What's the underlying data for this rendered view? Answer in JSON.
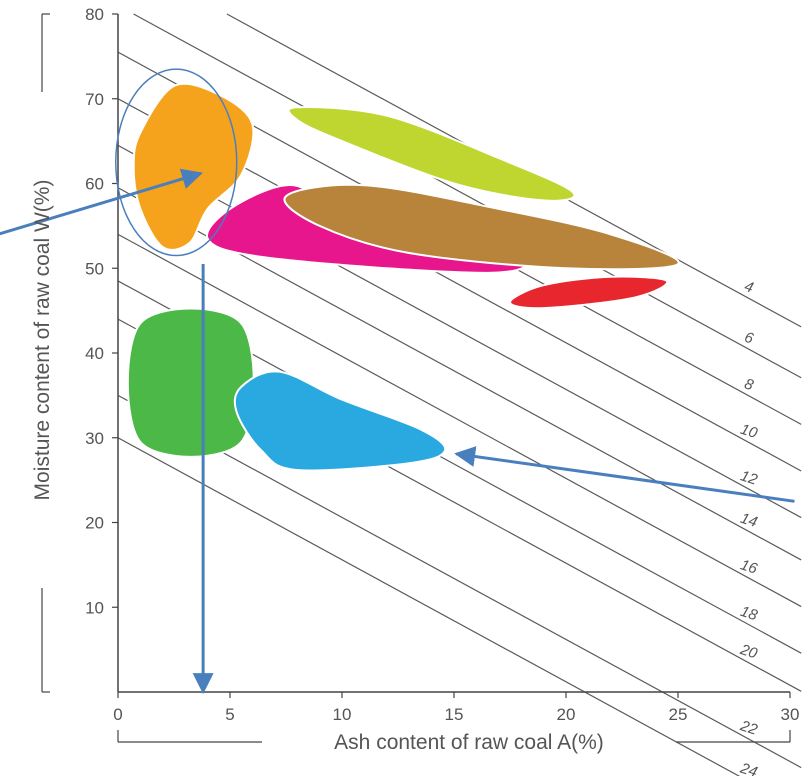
{
  "chart_data": {
    "type": "area",
    "xlabel": "Ash content of raw coal A(%)",
    "ylabel": "Moisture content of raw coal W(%)",
    "xlim": [
      0,
      30
    ],
    "ylim": [
      0,
      80
    ],
    "x_ticks": [
      "0",
      "5",
      "10",
      "15",
      "20",
      "25",
      "30"
    ],
    "y_ticks": [
      "10",
      "20",
      "30",
      "40",
      "50",
      "60",
      "70",
      "80"
    ],
    "isolines": [
      {
        "label": "4",
        "w_at_a0": 87.0
      },
      {
        "label": "6",
        "w_at_a0": 81.0
      },
      {
        "label": "8",
        "w_at_a0": 75.5
      },
      {
        "label": "10",
        "w_at_a0": 70.0
      },
      {
        "label": "12",
        "w_at_a0": 64.5
      },
      {
        "label": "14",
        "w_at_a0": 59.5
      },
      {
        "label": "16",
        "w_at_a0": 54.0
      },
      {
        "label": "18",
        "w_at_a0": 48.5
      },
      {
        "label": "20",
        "w_at_a0": 44.0
      },
      {
        "label": "22",
        "w_at_a0": 35.0
      },
      {
        "label": "24",
        "w_at_a0": 30.0
      }
    ],
    "regions": [
      {
        "color": "#f5a31d",
        "points": [
          [
            1,
            66
          ],
          [
            2.5,
            71.5
          ],
          [
            4.5,
            70.5
          ],
          [
            6,
            67
          ],
          [
            5.5,
            61
          ],
          [
            4,
            57
          ],
          [
            3.2,
            53
          ],
          [
            2,
            52.5
          ],
          [
            1,
            57
          ],
          [
            0.7,
            62
          ]
        ]
      },
      {
        "color": "#bfd630",
        "points": [
          [
            8,
            69
          ],
          [
            12,
            68
          ],
          [
            17,
            63
          ],
          [
            20.3,
            59
          ],
          [
            19,
            58
          ],
          [
            15,
            60
          ],
          [
            10,
            65
          ],
          [
            8,
            67.5
          ]
        ]
      },
      {
        "color": "#e8168c",
        "points": [
          [
            4,
            53.5
          ],
          [
            5,
            57
          ],
          [
            7.5,
            59.8
          ],
          [
            9.5,
            58
          ],
          [
            14,
            54
          ],
          [
            18,
            51
          ],
          [
            17,
            49.5
          ],
          [
            12,
            50
          ],
          [
            6,
            51.5
          ]
        ]
      },
      {
        "color": "#b8843c",
        "points": [
          [
            7.5,
            58.5
          ],
          [
            11,
            59.8
          ],
          [
            17,
            57
          ],
          [
            22,
            54
          ],
          [
            25,
            50.5
          ],
          [
            20,
            50
          ],
          [
            13,
            51.8
          ],
          [
            9,
            55
          ]
        ]
      },
      {
        "color": "#e8262d",
        "points": [
          [
            17.5,
            46
          ],
          [
            19,
            48
          ],
          [
            22,
            49
          ],
          [
            24.5,
            48.5
          ],
          [
            23,
            46.5
          ],
          [
            19,
            45.3
          ]
        ]
      },
      {
        "color": "#4bb848",
        "points": [
          [
            1,
            29.5
          ],
          [
            1,
            43.5
          ],
          [
            5.5,
            43.5
          ],
          [
            5.5,
            29.5
          ]
        ]
      },
      {
        "color": "#2aa9e0",
        "points": [
          [
            5.5,
            36
          ],
          [
            7.2,
            37.8
          ],
          [
            10,
            34.5
          ],
          [
            13.5,
            31
          ],
          [
            14.6,
            28.5
          ],
          [
            13,
            27
          ],
          [
            8,
            26.2
          ],
          [
            6.4,
            28.5
          ],
          [
            5.3,
            33
          ]
        ]
      }
    ],
    "annotations": [
      {
        "type": "ellipse",
        "cx": 2.6,
        "cy": 62.5,
        "rx": 2.7,
        "ry": 11
      },
      {
        "type": "arrow",
        "from": [
          3.8,
          50.5
        ],
        "to": [
          3.8,
          0
        ]
      },
      {
        "type": "arrow",
        "from": [
          -6,
          53.5
        ],
        "to": [
          3.7,
          61.2
        ]
      },
      {
        "type": "arrow",
        "from": [
          30.2,
          22.5
        ],
        "to": [
          15.1,
          28.1
        ]
      }
    ]
  },
  "colors": {
    "axis": "#444444",
    "isoline": "#5a5a5a",
    "annotation": "#4a7fbe"
  }
}
